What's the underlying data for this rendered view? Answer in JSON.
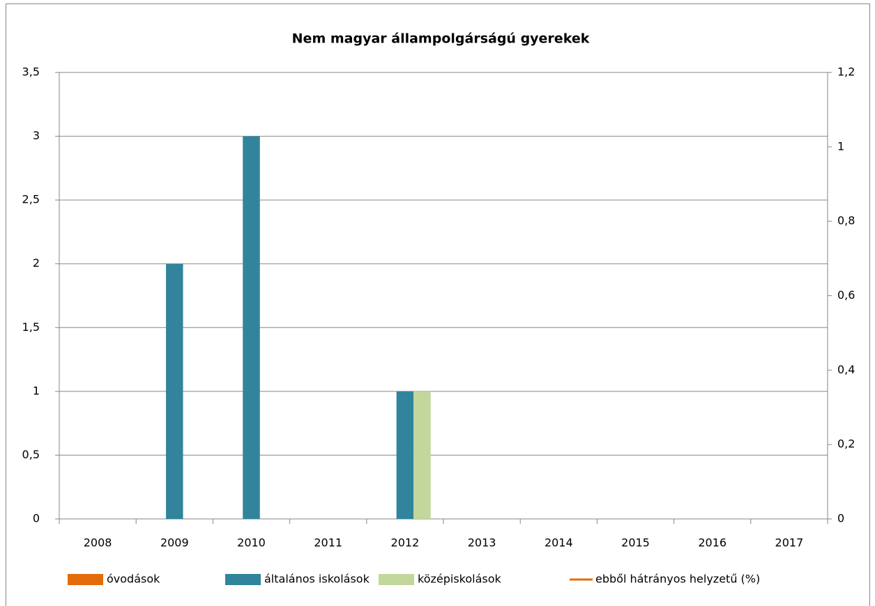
{
  "chart_data": {
    "type": "bar",
    "title": "Nem magyar állampolgárságú gyerekek",
    "categories": [
      "2008",
      "2009",
      "2010",
      "2011",
      "2012",
      "2013",
      "2014",
      "2015",
      "2016",
      "2017"
    ],
    "series": [
      {
        "name": "óvodások",
        "color": "#e36c09",
        "values": [
          0,
          0,
          0,
          0,
          0,
          0,
          0,
          0,
          0,
          0
        ]
      },
      {
        "name": "általános iskolások",
        "color": "#31849b",
        "values": [
          0,
          2,
          3,
          0,
          1,
          0,
          0,
          0,
          0,
          0
        ]
      },
      {
        "name": "középiskolások",
        "color": "#c3d69b",
        "values": [
          0,
          0,
          0,
          0,
          1,
          0,
          0,
          0,
          0,
          0
        ]
      },
      {
        "name": "ebből hátrányos helyzetű (%)",
        "color": "#e36c09",
        "type": "line",
        "axis": "y2",
        "values": [
          null,
          null,
          null,
          null,
          null,
          null,
          null,
          null,
          null,
          null
        ]
      }
    ],
    "ylim": [
      0,
      3.5
    ],
    "yticks": [
      0,
      {
        "value": 0.5,
        "label": "0,5"
      },
      1,
      {
        "value": 1.5,
        "label": "1,5"
      },
      2,
      {
        "value": 2.5,
        "label": "2,5"
      },
      3,
      {
        "value": 3.5,
        "label": "3,5"
      }
    ],
    "y2lim": [
      0,
      1.2
    ],
    "y2ticks": [
      0,
      {
        "value": 0.2,
        "label": "0,2"
      },
      {
        "value": 0.4,
        "label": "0,4"
      },
      {
        "value": 0.6,
        "label": "0,6"
      },
      {
        "value": 0.8,
        "label": "0,8"
      },
      1,
      {
        "value": 1.2,
        "label": "1,2"
      }
    ],
    "grid": true,
    "legend": "bottom"
  }
}
